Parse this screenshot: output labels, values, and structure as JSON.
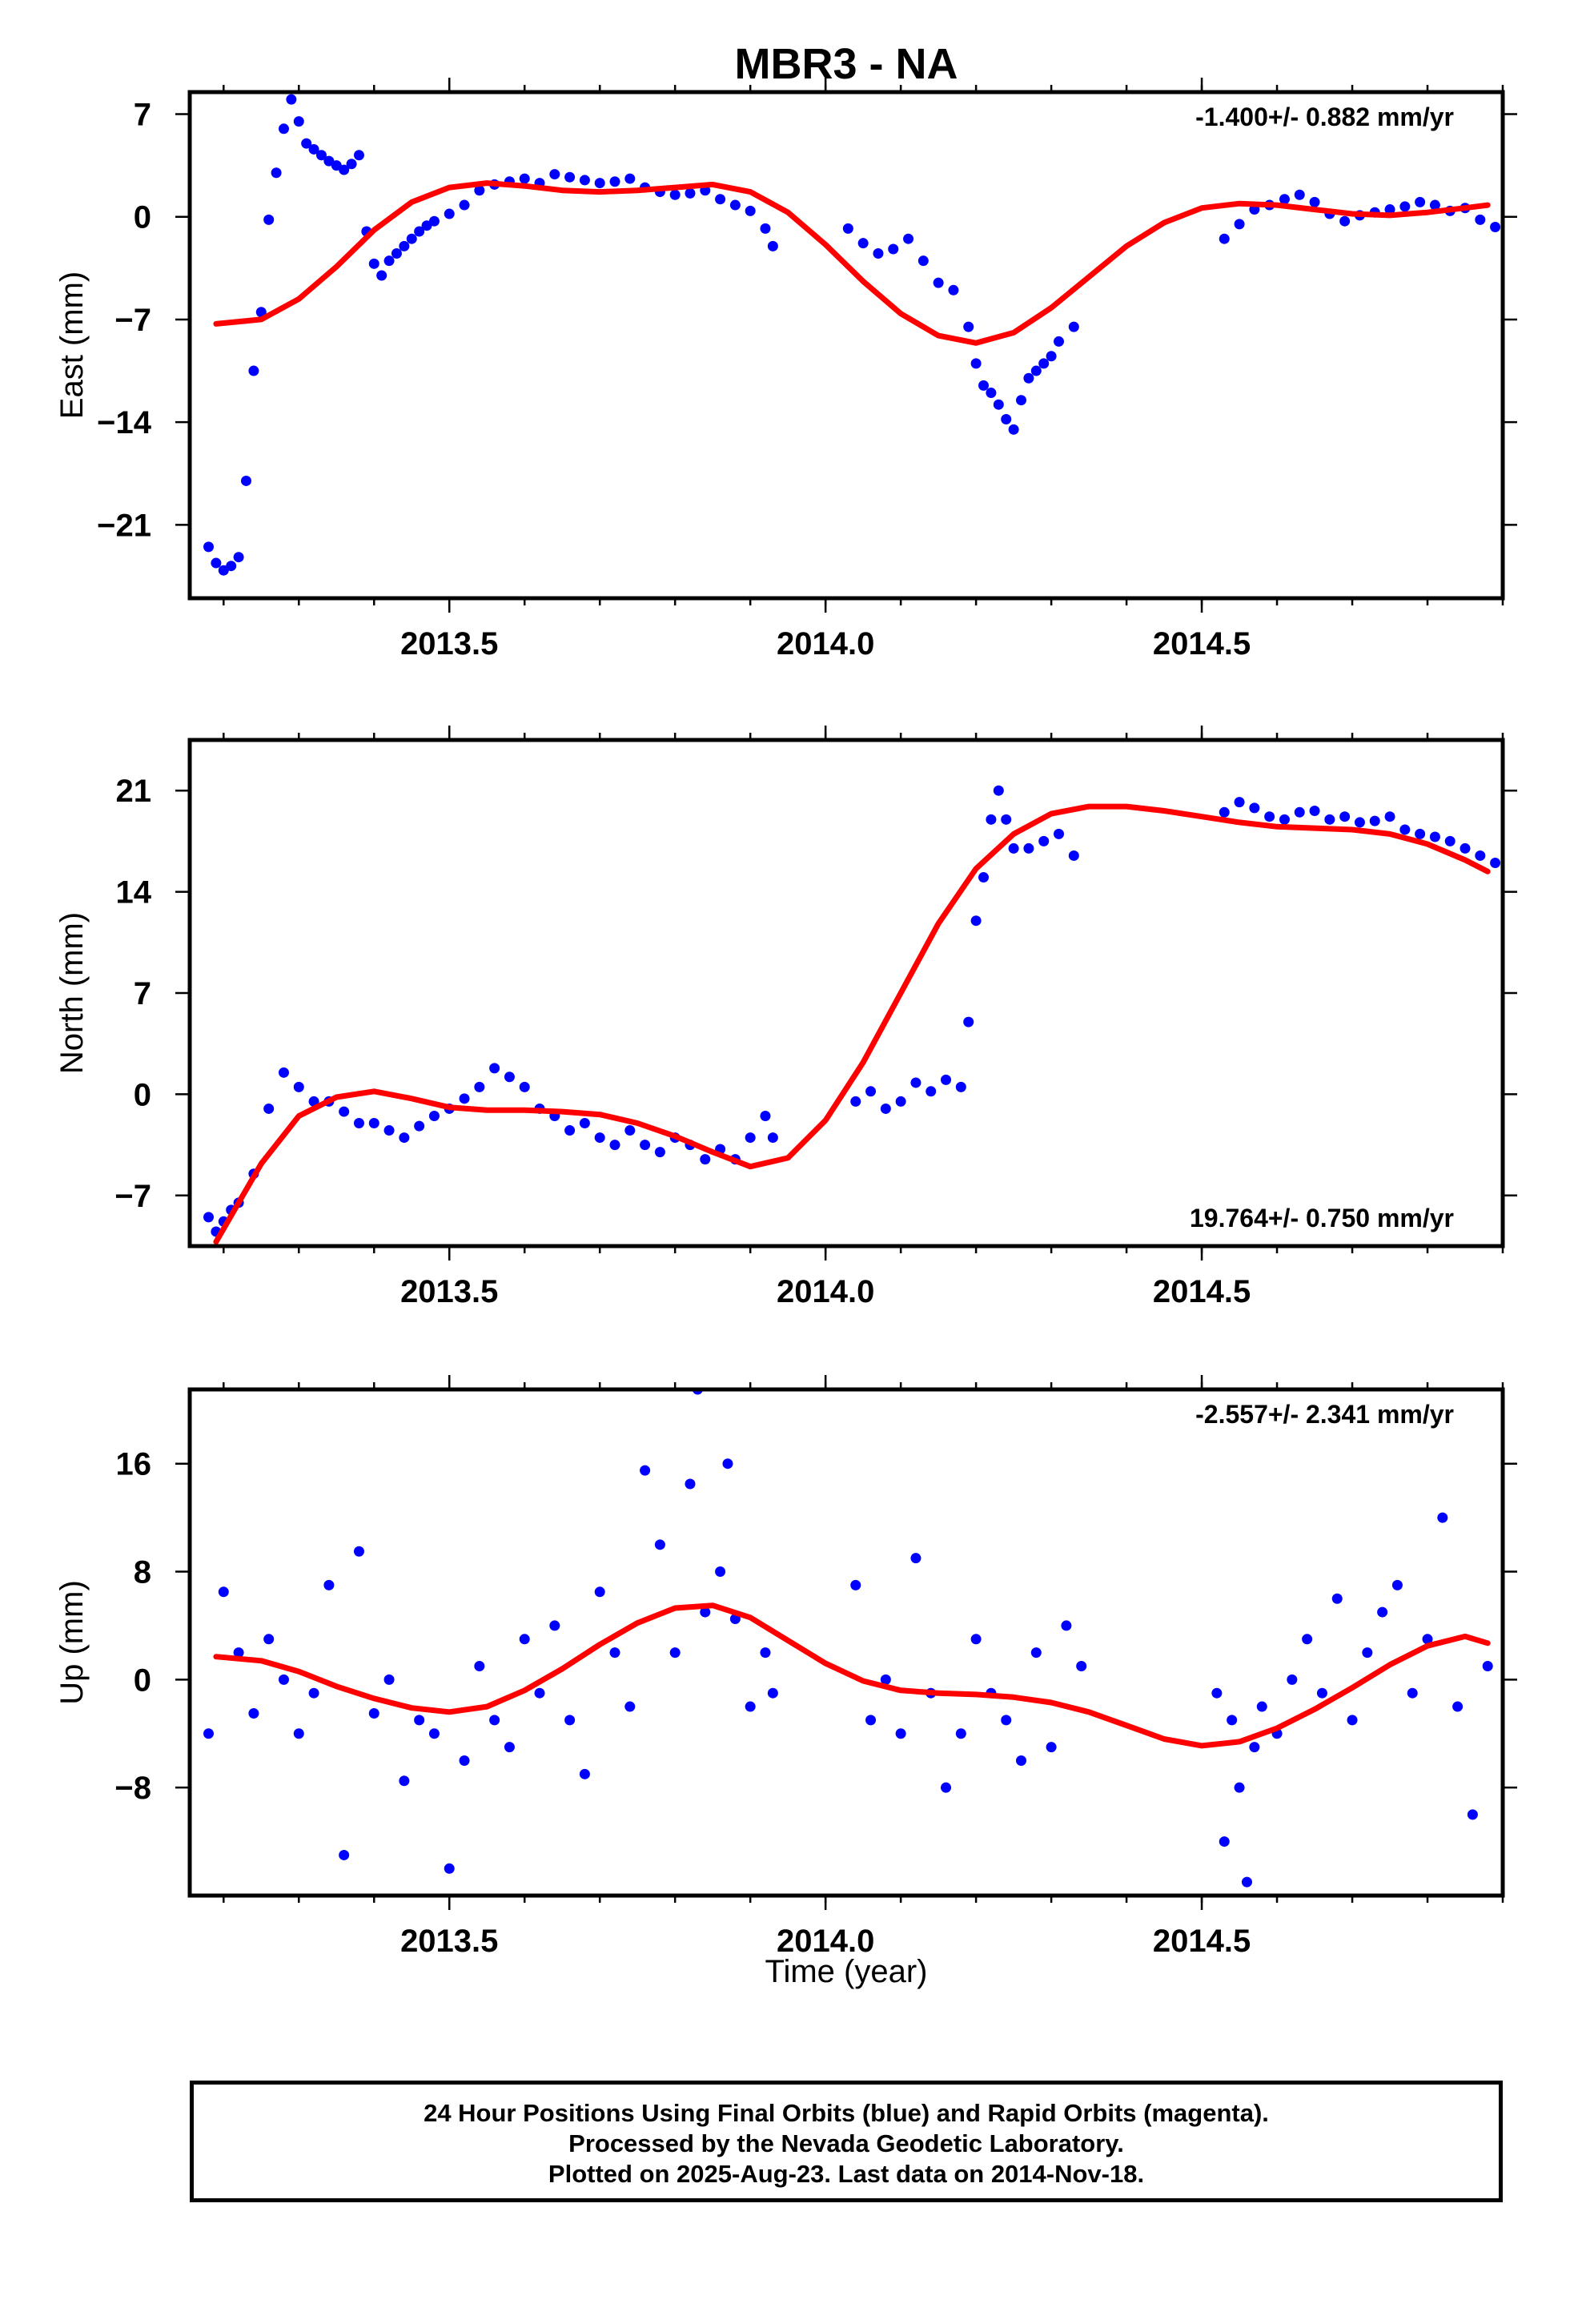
{
  "chart_data": [
    {
      "type": "scatter",
      "title": "MBR3 - NA",
      "ylabel": "East (mm)",
      "xlabel": "",
      "rate_label": "-1.400+/- 0.882 mm/yr",
      "xlim": [
        2013.155,
        2014.9
      ],
      "ylim": [
        -26,
        8.5
      ],
      "yticks": [
        7,
        0,
        -7,
        -14,
        -21
      ],
      "ytick_labels": [
        "7",
        "0",
        "−7",
        "−14",
        "−21"
      ],
      "xticks": [
        2013.5,
        2014.0,
        2014.5
      ],
      "xtick_labels": [
        "2013.5",
        "2014.0",
        "2014.5"
      ],
      "series": [
        {
          "role": "points",
          "color": "#0000ff",
          "x": [
            2013.18,
            2013.19,
            2013.2,
            2013.21,
            2013.22,
            2013.23,
            2013.24,
            2013.25,
            2013.26,
            2013.27,
            2013.28,
            2013.29,
            2013.3,
            2013.31,
            2013.32,
            2013.33,
            2013.34,
            2013.35,
            2013.36,
            2013.37,
            2013.38,
            2013.39,
            2013.4,
            2013.41,
            2013.42,
            2013.43,
            2013.44,
            2013.45,
            2013.46,
            2013.47,
            2013.48,
            2013.5,
            2013.52,
            2013.54,
            2013.56,
            2013.58,
            2013.6,
            2013.62,
            2013.64,
            2013.66,
            2013.68,
            2013.7,
            2013.72,
            2013.74,
            2013.76,
            2013.78,
            2013.8,
            2013.82,
            2013.84,
            2013.86,
            2013.88,
            2013.9,
            2013.92,
            2013.93,
            2014.03,
            2014.05,
            2014.07,
            2014.09,
            2014.11,
            2014.13,
            2014.15,
            2014.17,
            2014.19,
            2014.2,
            2014.21,
            2014.22,
            2014.23,
            2014.24,
            2014.25,
            2014.26,
            2014.27,
            2014.28,
            2014.29,
            2014.3,
            2014.31,
            2014.33,
            2014.53,
            2014.55,
            2014.57,
            2014.59,
            2014.61,
            2014.63,
            2014.65,
            2014.67,
            2014.69,
            2014.71,
            2014.73,
            2014.75,
            2014.77,
            2014.79,
            2014.81,
            2014.83,
            2014.85,
            2014.87,
            2014.89
          ],
          "y": [
            -22.5,
            -23.6,
            -24.1,
            -23.8,
            -23.2,
            -18,
            -10.5,
            -6.5,
            -0.2,
            3,
            6,
            8,
            6.5,
            5,
            4.6,
            4.2,
            3.8,
            3.5,
            3.2,
            3.6,
            4.2,
            -1,
            -3.2,
            -4,
            -3,
            -2.5,
            -2,
            -1.5,
            -1,
            -0.6,
            -0.3,
            0.2,
            0.8,
            1.8,
            2.2,
            2.4,
            2.6,
            2.3,
            2.9,
            2.7,
            2.5,
            2.3,
            2.4,
            2.6,
            2.0,
            1.7,
            1.5,
            1.6,
            1.8,
            1.2,
            0.8,
            0.4,
            -0.8,
            -2,
            -0.8,
            -1.8,
            -2.5,
            -2.2,
            -1.5,
            -3,
            -4.5,
            -5,
            -7.5,
            -10,
            -11.5,
            -12,
            -12.8,
            -13.8,
            -14.5,
            -12.5,
            -11,
            -10.5,
            -10,
            -9.5,
            -8.5,
            -7.5,
            -1.5,
            -0.5,
            0.5,
            0.8,
            1.2,
            1.5,
            1.0,
            0.2,
            -0.3,
            0.1,
            0.3,
            0.5,
            0.7,
            1.0,
            0.8,
            0.4,
            0.6,
            -0.2,
            -0.7
          ]
        },
        {
          "role": "fit",
          "color": "#ff0000",
          "x": [
            2013.19,
            2013.25,
            2013.3,
            2013.35,
            2013.4,
            2013.45,
            2013.5,
            2013.55,
            2013.6,
            2013.65,
            2013.7,
            2013.75,
            2013.8,
            2013.85,
            2013.9,
            2013.95,
            2014.0,
            2014.05,
            2014.1,
            2014.15,
            2014.2,
            2014.25,
            2014.3,
            2014.35,
            2014.4,
            2014.45,
            2014.5,
            2014.55,
            2014.6,
            2014.65,
            2014.7,
            2014.75,
            2014.8,
            2014.85,
            2014.88
          ],
          "y": [
            -7.3,
            -7.0,
            -5.6,
            -3.4,
            -0.9,
            1.0,
            2.0,
            2.3,
            2.1,
            1.8,
            1.7,
            1.8,
            2.0,
            2.2,
            1.7,
            0.3,
            -1.9,
            -4.4,
            -6.6,
            -8.1,
            -8.6,
            -7.9,
            -6.2,
            -4.1,
            -2.0,
            -0.4,
            0.6,
            0.9,
            0.8,
            0.5,
            0.2,
            0.1,
            0.3,
            0.6,
            0.8
          ]
        }
      ]
    },
    {
      "type": "scatter",
      "title": "",
      "ylabel": "North (mm)",
      "xlabel": "",
      "rate_label": "19.764+/- 0.750 mm/yr",
      "xlim": [
        2013.155,
        2014.9
      ],
      "ylim": [
        -10.5,
        24.5
      ],
      "yticks": [
        21,
        14,
        7,
        0,
        -7
      ],
      "ytick_labels": [
        "21",
        "14",
        "7",
        "0",
        "−7"
      ],
      "xticks": [
        2013.5,
        2014.0,
        2014.5
      ],
      "xtick_labels": [
        "2013.5",
        "2014.0",
        "2014.5"
      ],
      "series": [
        {
          "role": "points",
          "color": "#0000ff",
          "x": [
            2013.18,
            2013.19,
            2013.2,
            2013.21,
            2013.22,
            2013.24,
            2013.26,
            2013.28,
            2013.3,
            2013.32,
            2013.34,
            2013.36,
            2013.38,
            2013.4,
            2013.42,
            2013.44,
            2013.46,
            2013.48,
            2013.5,
            2013.52,
            2013.54,
            2013.56,
            2013.58,
            2013.6,
            2013.62,
            2013.64,
            2013.66,
            2013.68,
            2013.7,
            2013.72,
            2013.74,
            2013.76,
            2013.78,
            2013.8,
            2013.82,
            2013.84,
            2013.86,
            2013.88,
            2013.9,
            2013.92,
            2013.93,
            2014.04,
            2014.06,
            2014.08,
            2014.1,
            2014.12,
            2014.14,
            2014.16,
            2014.18,
            2014.19,
            2014.2,
            2014.21,
            2014.22,
            2014.23,
            2014.24,
            2014.25,
            2014.27,
            2014.29,
            2014.31,
            2014.33,
            2014.53,
            2014.55,
            2014.57,
            2014.59,
            2014.61,
            2014.63,
            2014.65,
            2014.67,
            2014.69,
            2014.71,
            2014.73,
            2014.75,
            2014.77,
            2014.79,
            2014.81,
            2014.83,
            2014.85,
            2014.87,
            2014.89
          ],
          "y": [
            -8.5,
            -9.5,
            -8.8,
            -8,
            -7.5,
            -5.5,
            -1,
            1.5,
            0.5,
            -0.5,
            -0.5,
            -1.2,
            -2,
            -2,
            -2.5,
            -3,
            -2.2,
            -1.5,
            -1,
            -0.3,
            0.5,
            1.8,
            1.2,
            0.5,
            -1,
            -1.5,
            -2.5,
            -2,
            -3,
            -3.5,
            -2.5,
            -3.5,
            -4,
            -3,
            -3.5,
            -4.5,
            -3.8,
            -4.5,
            -3,
            -1.5,
            -3,
            -0.5,
            0.2,
            -1,
            -0.5,
            0.8,
            0.2,
            1.0,
            0.5,
            5,
            12,
            15,
            19,
            21,
            19,
            17,
            17,
            17.5,
            18,
            16.5,
            19.5,
            20.2,
            19.8,
            19.2,
            19,
            19.5,
            19.6,
            19,
            19.2,
            18.8,
            18.9,
            19.2,
            18.3,
            18,
            17.8,
            17.5,
            17,
            16.5,
            16
          ]
        },
        {
          "role": "fit",
          "color": "#ff0000",
          "x": [
            2013.19,
            2013.22,
            2013.25,
            2013.3,
            2013.35,
            2013.4,
            2013.45,
            2013.5,
            2013.55,
            2013.6,
            2013.65,
            2013.7,
            2013.75,
            2013.8,
            2013.85,
            2013.9,
            2013.95,
            2014.0,
            2014.05,
            2014.1,
            2014.15,
            2014.2,
            2014.25,
            2014.3,
            2014.35,
            2014.4,
            2014.45,
            2014.5,
            2014.55,
            2014.6,
            2014.65,
            2014.7,
            2014.75,
            2014.8,
            2014.85,
            2014.88
          ],
          "y": [
            -10.2,
            -7.5,
            -4.8,
            -1.5,
            -0.2,
            0.2,
            -0.3,
            -0.9,
            -1.1,
            -1.1,
            -1.2,
            -1.4,
            -2.0,
            -2.9,
            -4.0,
            -5.0,
            -4.4,
            -1.8,
            2.2,
            7.0,
            11.8,
            15.6,
            18.0,
            19.4,
            19.9,
            19.9,
            19.6,
            19.2,
            18.8,
            18.5,
            18.4,
            18.3,
            18.0,
            17.3,
            16.2,
            15.4
          ]
        }
      ]
    },
    {
      "type": "scatter",
      "title": "",
      "ylabel": "Up (mm)",
      "xlabel": "Time (year)",
      "rate_label": "-2.557+/- 2.341 mm/yr",
      "xlim": [
        2013.155,
        2014.9
      ],
      "ylim": [
        -16,
        21.5
      ],
      "yticks": [
        16,
        8,
        0,
        -8
      ],
      "ytick_labels": [
        "16",
        "8",
        "0",
        "−8"
      ],
      "xticks": [
        2013.5,
        2014.0,
        2014.5
      ],
      "xtick_labels": [
        "2013.5",
        "2014.0",
        "2014.5"
      ],
      "series": [
        {
          "role": "points",
          "color": "#0000ff",
          "x": [
            2013.18,
            2013.2,
            2013.22,
            2013.24,
            2013.26,
            2013.28,
            2013.3,
            2013.32,
            2013.34,
            2013.36,
            2013.38,
            2013.4,
            2013.42,
            2013.44,
            2013.46,
            2013.48,
            2013.5,
            2013.52,
            2013.54,
            2013.56,
            2013.58,
            2013.6,
            2013.62,
            2013.64,
            2013.66,
            2013.68,
            2013.7,
            2013.72,
            2013.74,
            2013.76,
            2013.78,
            2013.8,
            2013.82,
            2013.83,
            2013.84,
            2013.86,
            2013.87,
            2013.88,
            2013.9,
            2013.92,
            2013.93,
            2014.04,
            2014.06,
            2014.08,
            2014.1,
            2014.12,
            2014.14,
            2014.16,
            2014.18,
            2014.2,
            2014.22,
            2014.24,
            2014.26,
            2014.28,
            2014.3,
            2014.32,
            2014.34,
            2014.52,
            2014.53,
            2014.54,
            2014.55,
            2014.56,
            2014.57,
            2014.58,
            2014.6,
            2014.62,
            2014.64,
            2014.66,
            2014.68,
            2014.7,
            2014.72,
            2014.74,
            2014.76,
            2014.78,
            2014.8,
            2014.82,
            2014.84,
            2014.86,
            2014.88
          ],
          "y": [
            -4,
            6.5,
            2,
            -2.5,
            3,
            0,
            -4,
            -1,
            7,
            -13,
            9.5,
            -2.5,
            0,
            -7.5,
            -3,
            -4,
            -14,
            -6,
            1,
            -3,
            -5,
            3,
            -1,
            4,
            -3,
            -7,
            6.5,
            2,
            -2,
            15.5,
            10,
            2,
            14.5,
            21.5,
            5,
            8,
            16,
            4.5,
            -2,
            2,
            -1,
            7,
            -3,
            0,
            -4,
            9,
            -1,
            -8,
            -4,
            3,
            -1,
            -3,
            -6,
            2,
            -5,
            4,
            1,
            -1,
            -12,
            -3,
            -8,
            -15,
            -5,
            -2,
            -4,
            0,
            3,
            -1,
            6,
            -3,
            2,
            5,
            7,
            -1,
            3,
            12,
            -2,
            -10,
            1
          ]
        },
        {
          "role": "fit",
          "color": "#ff0000",
          "x": [
            2013.19,
            2013.25,
            2013.3,
            2013.35,
            2013.4,
            2013.45,
            2013.5,
            2013.55,
            2013.6,
            2013.65,
            2013.7,
            2013.75,
            2013.8,
            2013.85,
            2013.9,
            2013.95,
            2014.0,
            2014.05,
            2014.1,
            2014.15,
            2014.2,
            2014.25,
            2014.3,
            2014.35,
            2014.4,
            2014.45,
            2014.5,
            2014.55,
            2014.6,
            2014.65,
            2014.7,
            2014.75,
            2014.8,
            2014.85,
            2014.88
          ],
          "y": [
            1.7,
            1.4,
            0.6,
            -0.5,
            -1.4,
            -2.1,
            -2.4,
            -2.0,
            -0.8,
            0.8,
            2.6,
            4.2,
            5.3,
            5.5,
            4.6,
            2.9,
            1.2,
            -0.1,
            -0.8,
            -1.0,
            -1.1,
            -1.3,
            -1.7,
            -2.4,
            -3.4,
            -4.4,
            -4.9,
            -4.6,
            -3.6,
            -2.2,
            -0.6,
            1.1,
            2.5,
            3.2,
            2.7
          ]
        }
      ]
    }
  ],
  "footer": {
    "line1": "24 Hour Positions Using Final Orbits (blue) and Rapid Orbits (magenta).",
    "line2": "Processed by the Nevada Geodetic Laboratory.",
    "line3": "Plotted on 2025-Aug-23. Last data on 2014-Nov-18."
  }
}
